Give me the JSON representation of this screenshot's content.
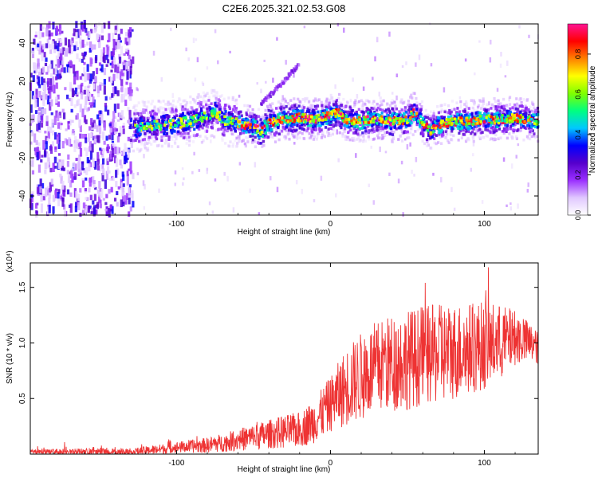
{
  "title": "C2E6.2025.321.02.53.G08",
  "chart_data": [
    {
      "type": "heatmap",
      "xlabel": "Height of straight line (km)",
      "ylabel": "Frequency (Hz)",
      "xlim": [
        -195,
        135
      ],
      "ylim": [
        -50,
        50
      ],
      "xticks": [
        -100,
        0,
        100
      ],
      "yticks": [
        -40,
        -20,
        0,
        20,
        40
      ],
      "colorbar": {
        "label": "Normalized spectral amplitude",
        "range": [
          0,
          0.95
        ],
        "ticks": [
          0.0,
          0.2,
          0.4,
          0.6,
          0.8
        ],
        "colors": [
          "#ffffff",
          "#e0c8ff",
          "#9b30ff",
          "#5500cc",
          "#0000ff",
          "#00c8ff",
          "#00ff80",
          "#80ff00",
          "#ffff00",
          "#ff8000",
          "#ff0000",
          "#ff1493"
        ]
      },
      "noise_region_x": [
        -195,
        -128
      ],
      "signal_trace": {
        "x": [
          -130,
          -125,
          -120,
          -110,
          -100,
          -90,
          -80,
          -75,
          -70,
          -60,
          -50,
          -45,
          -40,
          -30,
          -20,
          -10,
          0,
          5,
          10,
          20,
          30,
          40,
          50,
          55,
          60,
          65,
          70,
          80,
          90,
          100,
          110,
          120,
          135
        ],
        "y": [
          -6,
          -4,
          -3,
          -3,
          -2,
          -1,
          2,
          4,
          0,
          -2,
          -4,
          -6,
          -2,
          0,
          1,
          0,
          2,
          4,
          0,
          -1,
          1,
          -1,
          0,
          4,
          -2,
          -6,
          -3,
          -1,
          -1,
          0,
          0,
          1,
          -1
        ]
      },
      "drift_streak": {
        "x": [
          -45,
          -40,
          -35,
          -30,
          -25,
          -20
        ],
        "y": [
          8,
          12,
          16,
          20,
          25,
          29
        ]
      }
    },
    {
      "type": "line",
      "xlabel": "Height of straight line (km)",
      "ylabel": "SNR (10 * v/v)",
      "multiplier": "(x10⁴)",
      "xlim": [
        -195,
        135
      ],
      "ylim": [
        0,
        1.72
      ],
      "xticks": [
        -100,
        0,
        100
      ],
      "yticks": [
        0.5,
        1.0,
        1.5
      ],
      "series": [
        {
          "name": "SNR",
          "color": "#ee3333",
          "envelope": {
            "x": [
              -195,
              -170,
              -150,
              -130,
              -120,
              -100,
              -90,
              -80,
              -70,
              -60,
              -50,
              -40,
              -30,
              -20,
              -10,
              0,
              10,
              20,
              30,
              40,
              50,
              60,
              70,
              80,
              90,
              100,
              110,
              120,
              130,
              135
            ],
            "mean": [
              0.02,
              0.02,
              0.02,
              0.02,
              0.03,
              0.06,
              0.07,
              0.08,
              0.1,
              0.13,
              0.15,
              0.18,
              0.2,
              0.22,
              0.3,
              0.45,
              0.6,
              0.7,
              0.78,
              0.82,
              0.85,
              0.88,
              0.9,
              0.92,
              0.95,
              0.98,
              1.0,
              1.05,
              1.0,
              0.95
            ],
            "spread": [
              0.02,
              0.03,
              0.03,
              0.03,
              0.04,
              0.05,
              0.06,
              0.07,
              0.08,
              0.1,
              0.12,
              0.13,
              0.15,
              0.16,
              0.2,
              0.25,
              0.35,
              0.4,
              0.42,
              0.44,
              0.45,
              0.45,
              0.45,
              0.44,
              0.42,
              0.4,
              0.35,
              0.25,
              0.18,
              0.15
            ]
          }
        }
      ]
    }
  ]
}
